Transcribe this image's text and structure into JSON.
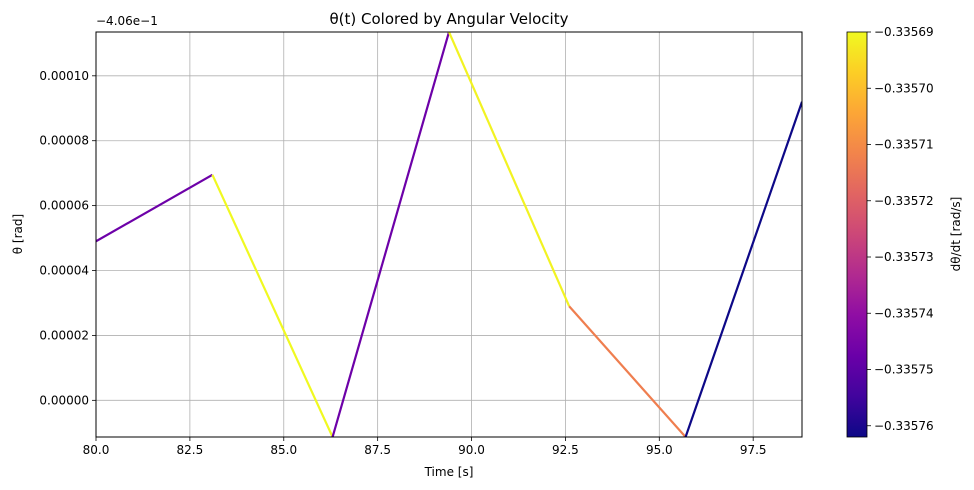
{
  "chart_data": {
    "type": "line",
    "title": "θ(t) Colored by Angular Velocity",
    "xlabel": "Time [s]",
    "ylabel": "θ [rad]",
    "y_offset_label": "−4.06e−1",
    "xlim": [
      80.0,
      98.8
    ],
    "ylim": [
      -1.13e-05,
      0.0001135
    ],
    "x_ticks": [
      80.0,
      82.5,
      85.0,
      87.5,
      90.0,
      92.5,
      95.0,
      97.5
    ],
    "x_tick_labels": [
      "80.0",
      "82.5",
      "85.0",
      "87.5",
      "90.0",
      "92.5",
      "95.0",
      "97.5"
    ],
    "y_ticks": [
      0.0,
      2e-05,
      4e-05,
      6e-05,
      8e-05,
      0.0001
    ],
    "y_tick_labels": [
      "0.00000",
      "0.00002",
      "0.00004",
      "0.00006",
      "0.00008",
      "0.00010"
    ],
    "grid": true,
    "segments": [
      {
        "x": [
          80.0,
          83.1
        ],
        "y": [
          4.9e-05,
          6.95e-05
        ],
        "color_value": -0.335747
      },
      {
        "x": [
          83.1,
          86.3
        ],
        "y": [
          6.95e-05,
          -1.13e-05
        ],
        "color_value": -0.33569
      },
      {
        "x": [
          86.3,
          89.4
        ],
        "y": [
          -1.13e-05,
          0.0001135
        ],
        "color_value": -0.335747
      },
      {
        "x": [
          89.4,
          92.6
        ],
        "y": [
          0.0001135,
          2.9e-05
        ],
        "color_value": -0.335691
      },
      {
        "x": [
          92.6,
          95.7
        ],
        "y": [
          2.9e-05,
          -1.13e-05
        ],
        "color_value": -0.335713
      },
      {
        "x": [
          95.7,
          98.8
        ],
        "y": [
          -1.13e-05,
          9.2e-05
        ],
        "color_value": -0.335762
      }
    ],
    "colorbar": {
      "label": "dθ/dt [rad/s]",
      "colormap": "plasma",
      "range": [
        -0.335762,
        -0.33569
      ],
      "ticks": [
        -0.33576,
        -0.33575,
        -0.33574,
        -0.33573,
        -0.33572,
        -0.33571,
        -0.3357,
        -0.33569
      ],
      "tick_labels": [
        "−0.33576",
        "−0.33575",
        "−0.33574",
        "−0.33573",
        "−0.33572",
        "−0.33571",
        "−0.33570",
        "−0.33569"
      ]
    }
  }
}
